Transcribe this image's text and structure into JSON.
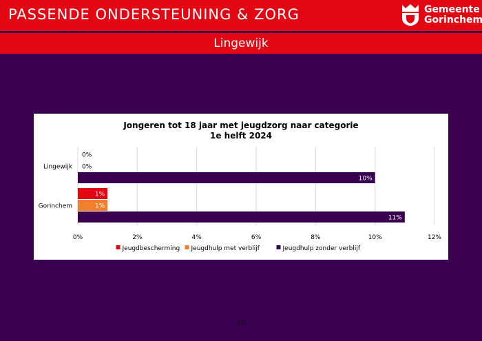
{
  "header": {
    "title": "PASSENDE ONDERSTEUNING & ZORG",
    "brand_line1": "Gemeente",
    "brand_line2": "Gorinchem"
  },
  "subtitle": "Lingewijk",
  "page_number": "30",
  "colors": {
    "header_red": "#e30613",
    "background": "#3a0050",
    "series_jeugdbescherming": "#e30613",
    "series_jeugdhulp_met": "#f07f2e",
    "series_jeugdhulp_zonder": "#3a0050"
  },
  "chart_data": {
    "type": "bar",
    "orientation": "horizontal",
    "title_line1": "Jongeren tot 18 jaar met jeugdzorg naar categorie",
    "title_line2": "1e helft 2024",
    "categories": [
      "Lingewijk",
      "Gorinchem"
    ],
    "series": [
      {
        "name": "Jeugdbescherming",
        "values": [
          0,
          1
        ],
        "labels": [
          "0%",
          "1%"
        ],
        "color": "#e30613"
      },
      {
        "name": "Jeugdhulp met verblijf",
        "values": [
          0,
          1
        ],
        "labels": [
          "0%",
          "1%"
        ],
        "color": "#f07f2e"
      },
      {
        "name": "Jeugdhulp zonder verblijf",
        "values": [
          10,
          11
        ],
        "labels": [
          "10%",
          "11%"
        ],
        "color": "#3a0050"
      }
    ],
    "xlim": [
      0,
      12
    ],
    "x_ticks": [
      0,
      2,
      4,
      6,
      8,
      10,
      12
    ],
    "x_tick_labels": [
      "0%",
      "2%",
      "4%",
      "6%",
      "8%",
      "10%",
      "12%"
    ],
    "grid": true,
    "legend_position": "bottom"
  }
}
